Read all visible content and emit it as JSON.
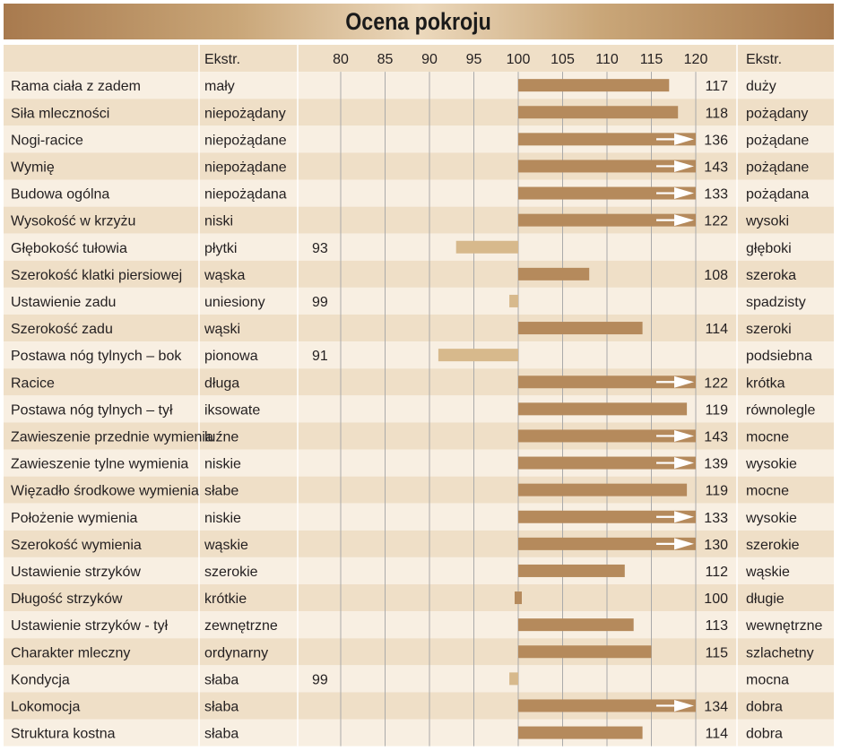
{
  "title": "Ocena pokroju",
  "chart_data": {
    "type": "bar",
    "title": "Ocena pokroju",
    "header_left": "Ekstr.",
    "header_right": "Ekstr.",
    "axis_ticks": [
      80,
      85,
      90,
      95,
      100,
      105,
      110,
      115,
      120
    ],
    "xlim": [
      80,
      120
    ],
    "baseline": 100,
    "colors": {
      "bar_high": "#b58a5c",
      "bar_low": "#d7b98c",
      "row_light": "#f8efe2",
      "row_dark": "#efdfc7",
      "header_bg": "#efdfc7",
      "grid": "#aaaaaa",
      "title_bg": "#c9a678"
    },
    "rows": [
      {
        "trait": "Rama ciała z zadem",
        "left": "mały",
        "right": "duży",
        "value": 117
      },
      {
        "trait": "Siła mleczności",
        "left": "niepożądany",
        "right": "pożądany",
        "value": 118
      },
      {
        "trait": "Nogi-racice",
        "left": "niepożądane",
        "right": "pożądane",
        "value": 136
      },
      {
        "trait": "Wymię",
        "left": "niepożądane",
        "right": "pożądane",
        "value": 143
      },
      {
        "trait": "Budowa ogólna",
        "left": "niepożądana",
        "right": "pożądana",
        "value": 133
      },
      {
        "trait": "Wysokość w krzyżu",
        "left": "niski",
        "right": "wysoki",
        "value": 122
      },
      {
        "trait": "Głębokość tułowia",
        "left": "płytki",
        "right": "głęboki",
        "value": 93
      },
      {
        "trait": "Szerokość klatki piersiowej",
        "left": "wąska",
        "right": "szeroka",
        "value": 108
      },
      {
        "trait": "Ustawienie zadu",
        "left": "uniesiony",
        "right": "spadzisty",
        "value": 99
      },
      {
        "trait": "Szerokość zadu",
        "left": "wąski",
        "right": "szeroki",
        "value": 114
      },
      {
        "trait": "Postawa nóg tylnych – bok",
        "left": "pionowa",
        "right": "podsiebna",
        "value": 91
      },
      {
        "trait": "Racice",
        "left": "długa",
        "right": "krótka",
        "value": 122
      },
      {
        "trait": "Postawa nóg tylnych – tył",
        "left": "iksowate",
        "right": "równolegle",
        "value": 119
      },
      {
        "trait": "Zawieszenie przednie wymienia",
        "left": "luźne",
        "right": "mocne",
        "value": 143
      },
      {
        "trait": "Zawieszenie tylne wymienia",
        "left": "niskie",
        "right": "wysokie",
        "value": 139
      },
      {
        "trait": "Więzadło środkowe wymienia",
        "left": "słabe",
        "right": "mocne",
        "value": 119
      },
      {
        "trait": "Położenie wymienia",
        "left": "niskie",
        "right": "wysokie",
        "value": 133
      },
      {
        "trait": "Szerokość wymienia",
        "left": "wąskie",
        "right": "szerokie",
        "value": 130
      },
      {
        "trait": "Ustawienie strzyków",
        "left": "szerokie",
        "right": "wąskie",
        "value": 112
      },
      {
        "trait": "Długość strzyków",
        "left": "krótkie",
        "right": "długie",
        "value": 100
      },
      {
        "trait": "Ustawienie strzyków - tył",
        "left": "zewnętrzne",
        "right": "wewnętrzne",
        "value": 113
      },
      {
        "trait": "Charakter mleczny",
        "left": "ordynarny",
        "right": "szlachetny",
        "value": 115
      },
      {
        "trait": "Kondycja",
        "left": "słaba",
        "right": "mocna",
        "value": 99
      },
      {
        "trait": "Lokomocja",
        "left": "słaba",
        "right": "dobra",
        "value": 134
      },
      {
        "trait": "Struktura kostna",
        "left": "słaba",
        "right": "dobra",
        "value": 114
      }
    ]
  }
}
